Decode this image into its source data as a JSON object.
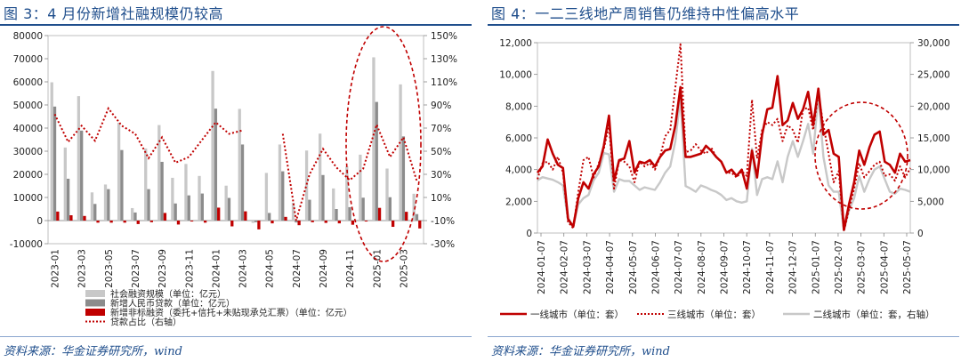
{
  "left": {
    "title": "图 3：4 月份新增社融规模仍较高",
    "source": "资料来源：华金证券研究所，wind",
    "chart_data": {
      "type": "bar",
      "title": "图 3：4 月份新增社融规模仍较高",
      "categories": [
        "2023-01",
        "2023-02",
        "2023-03",
        "2023-04",
        "2023-05",
        "2023-06",
        "2023-07",
        "2023-08",
        "2023-09",
        "2023-10",
        "2023-11",
        "2023-12",
        "2024-01",
        "2024-02",
        "2024-03",
        "2024-04",
        "2024-05",
        "2024-06",
        "2024-07",
        "2024-08",
        "2024-09",
        "2024-10",
        "2024-11",
        "2024-12",
        "2025-01",
        "2025-02",
        "2025-03",
        "2025-04"
      ],
      "x_tick_labels": [
        "2023-01",
        "2023-03",
        "2023-05",
        "2023-07",
        "2023-09",
        "2023-11",
        "2024-01",
        "2024-03",
        "2024-05",
        "2024-07",
        "2024-09",
        "2024-11",
        "2025-01",
        "2025-03"
      ],
      "ylim": [
        -10000,
        80000
      ],
      "y_ticks": [
        "-10000",
        "0",
        "10000",
        "20000",
        "30000",
        "40000",
        "50000",
        "60000",
        "70000",
        "80000"
      ],
      "y2lim": [
        -30,
        150
      ],
      "y2_ticks": [
        "-30%",
        "-10%",
        "10%",
        "30%",
        "50%",
        "70%",
        "90%",
        "110%",
        "130%",
        "150%"
      ],
      "legend_position": "bottom",
      "series": [
        {
          "name": "社会融资规模（单位：亿元）",
          "axis": "left",
          "color": "#c8c8c8",
          "values": [
            59800,
            31600,
            53800,
            12200,
            15600,
            42300,
            5400,
            31200,
            41300,
            18500,
            24500,
            19300,
            64700,
            15100,
            48300,
            -1000,
            20600,
            32900,
            7700,
            30300,
            37600,
            13900,
            23400,
            28500,
            70600,
            22500,
            58900,
            11600
          ]
        },
        {
          "name": "新增人民币贷款（单位：亿元）",
          "axis": "left",
          "color": "#8c8c8c",
          "values": [
            49300,
            18100,
            38900,
            7200,
            13600,
            30500,
            3500,
            13600,
            25400,
            7400,
            10900,
            11700,
            48400,
            9800,
            32900,
            -700,
            3300,
            21300,
            -800,
            9000,
            19700,
            5000,
            5800,
            9900,
            51300,
            10100,
            36400,
            2800
          ]
        },
        {
          "name": "新增非标融资（委托+信托+未贴现承兑汇票）（单位：亿元）",
          "axis": "left",
          "color": "#c00000",
          "values": [
            3900,
            2300,
            2000,
            -900,
            -900,
            -900,
            -1500,
            -700,
            3300,
            -1700,
            -400,
            -900,
            5600,
            -2500,
            4000,
            -3800,
            -1200,
            1600,
            -2000,
            -700,
            -1000,
            -1200,
            -1800,
            -400,
            5500,
            -2700,
            3800,
            -3400
          ]
        },
        {
          "name": "贷款占比（右轴）",
          "axis": "right",
          "color": "#c00000",
          "style": "dotted",
          "values": [
            82,
            58,
            72,
            59,
            87,
            72,
            65,
            44,
            62,
            40,
            45,
            60,
            75,
            65,
            68,
            null,
            null,
            65,
            -10,
            30,
            52,
            36,
            25,
            35,
            73,
            45,
            62,
            24
          ]
        }
      ]
    }
  },
  "right": {
    "title": "图 4：一二三线地产周销售仍维持中性偏高水平",
    "source": "资料来源：华金证券研究所，wind",
    "chart_data": {
      "type": "line",
      "title": "图 4：一二三线地产周销售仍维持中性偏高水平",
      "x_range": [
        "2024-01-07",
        "2025-05-18"
      ],
      "x_tick_labels": [
        "2024-01-07",
        "2024-02-07",
        "2024-03-07",
        "2024-04-07",
        "2024-05-07",
        "2024-06-07",
        "2024-07-07",
        "2024-08-07",
        "2024-09-07",
        "2024-10-07",
        "2024-11-07",
        "2024-12-07",
        "2025-01-07",
        "2025-02-07",
        "2025-03-07",
        "2025-04-07",
        "2025-05-07"
      ],
      "ylim": [
        0,
        12000
      ],
      "y_ticks": [
        "0",
        "2,000",
        "4,000",
        "6,000",
        "8,000",
        "10,000",
        "12,000"
      ],
      "y2lim": [
        0,
        30000
      ],
      "y2_ticks": [
        "0",
        "5,000",
        "10,000",
        "15,000",
        "20,000",
        "25,000",
        "30,000"
      ],
      "legend_position": "bottom",
      "series": [
        {
          "name": "一线城市（单位：套）",
          "axis": "left",
          "color": "#c00000",
          "style": "solid",
          "values": [
            3800,
            4200,
            5900,
            5000,
            4300,
            4100,
            900,
            400,
            2200,
            3200,
            2800,
            3700,
            4200,
            5500,
            7400,
            3300,
            4600,
            4700,
            5800,
            3800,
            4500,
            4400,
            4600,
            4200,
            4800,
            5200,
            5300,
            6800,
            9200,
            4800,
            4800,
            4900,
            5000,
            5500,
            5200,
            4800,
            4500,
            3800,
            4000,
            3600,
            4000,
            2800,
            5200,
            3500,
            6200,
            7800,
            7900,
            9900,
            6800,
            7100,
            8200,
            7200,
            7800,
            8900,
            6800,
            9100,
            6200,
            6500,
            5000,
            4800,
            200,
            1800,
            3200,
            5200,
            4300,
            5400,
            6200,
            6400,
            4500,
            4300,
            3800,
            5000,
            4500,
            4600
          ]
        },
        {
          "name": "三线城市（单位：套）",
          "axis": "left",
          "color": "#c00000",
          "style": "dotted",
          "values": [
            3400,
            4400,
            4500,
            4000,
            4800,
            3800,
            700,
            300,
            2600,
            4600,
            4800,
            3500,
            4400,
            5300,
            6800,
            2800,
            4600,
            4500,
            4200,
            3200,
            4500,
            4200,
            4400,
            4000,
            4800,
            6100,
            6500,
            9200,
            11900,
            5100,
            5200,
            5600,
            5200,
            5000,
            5400,
            4800,
            4500,
            3800,
            3800,
            3500,
            3900,
            3600,
            8400,
            4700,
            6500,
            7000,
            6800,
            7200,
            5800,
            6800,
            6500,
            5700,
            7800,
            7900,
            6500,
            8800,
            6800,
            5000,
            3200,
            3900,
            100,
            1500,
            2800,
            4400,
            3500,
            3900,
            4300,
            4500,
            3600,
            3700,
            3300,
            4200,
            3500,
            4100
          ]
        },
        {
          "name": "二线城市（单位：套，右轴）",
          "axis": "right",
          "color": "#c8c8c8",
          "style": "solid",
          "values": [
            8300,
            8800,
            8600,
            8400,
            8000,
            7500,
            2000,
            1000,
            4500,
            5500,
            6000,
            8300,
            9500,
            12600,
            12400,
            6500,
            8500,
            8200,
            8200,
            7500,
            6800,
            7200,
            7000,
            6800,
            8000,
            9500,
            10500,
            14500,
            21500,
            7400,
            7000,
            6500,
            7500,
            7200,
            6800,
            6500,
            6000,
            5200,
            5500,
            5000,
            4800,
            5000,
            13300,
            6000,
            8500,
            8800,
            8500,
            11300,
            8000,
            12000,
            14500,
            12000,
            14500,
            17200,
            12500,
            21900,
            12000,
            7500,
            6500,
            6500,
            400,
            3500,
            5500,
            9000,
            6500,
            8500,
            10000,
            10500,
            8500,
            6500,
            6200,
            7000,
            6800,
            6500
          ]
        }
      ]
    }
  }
}
